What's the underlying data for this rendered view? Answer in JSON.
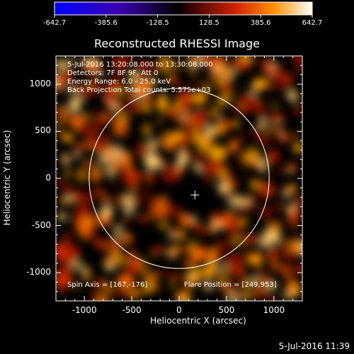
{
  "colorbar": {
    "tick_labels": [
      "-642.7",
      "-385.6",
      "-128.5",
      "128.5",
      "385.6",
      "642.7"
    ],
    "range": [
      -642.7,
      642.7
    ]
  },
  "plot": {
    "title": "Reconstructed RHESSI Image",
    "xlabel": "Heliocentric X (arcsec)",
    "ylabel": "Heliocentric Y (arcsec)",
    "xlim": [
      -1300,
      1300
    ],
    "ylim": [
      -1300,
      1300
    ],
    "x_ticks": [
      "-1000",
      "-500",
      "0",
      "500",
      "1000"
    ],
    "y_ticks": [
      "1000",
      "500",
      "0",
      "-500",
      "-1000"
    ],
    "info_lines": [
      "5-Jul-2016 13:20:08.000 to 13:30:08.000",
      "Detectors: 7F 8F 9F, Att 0",
      "Energy Range: 6.0 - 25.0 keV",
      "Back Projection    Total counts: 5.575e+03"
    ],
    "spin_axis": "Spin Axis = [167,-176]",
    "flare_position": "Flare Position = [249,953]",
    "solar_disk_radius_arcsec": 950,
    "disk_center_arcsec": [
      0,
      0
    ],
    "cross_marker_arcsec": [
      167,
      -176
    ]
  },
  "timestamp": "5-Jul-2016 11:39",
  "colors": {
    "background": "#000000",
    "text": "#ffffff",
    "colormap": [
      "#0000ff",
      "#4a00a0",
      "#000000",
      "#c02000",
      "#ff8000",
      "#ffffff"
    ]
  }
}
